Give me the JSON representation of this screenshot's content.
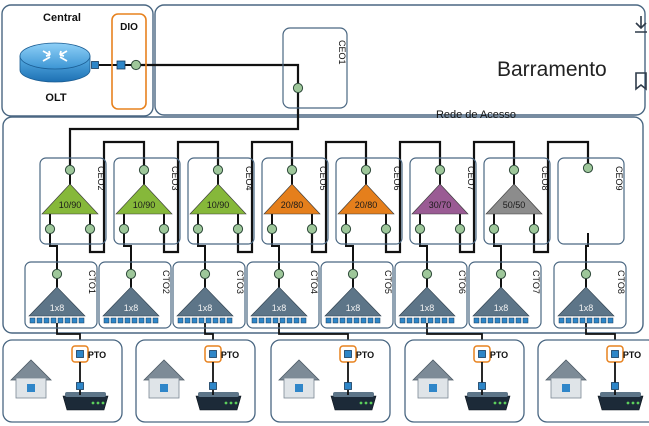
{
  "central": {
    "title": "Central",
    "olt_label": "OLT",
    "dio_label": "DIO"
  },
  "barramento": {
    "title": "Barramento",
    "ceo_label": "CEO1"
  },
  "rede": {
    "title": "Rede de Acesso"
  },
  "ceos": [
    {
      "label": "CEO2",
      "ratio": "10/90",
      "color": "#86b83a"
    },
    {
      "label": "CEO3",
      "ratio": "10/90",
      "color": "#86b83a"
    },
    {
      "label": "CEO4",
      "ratio": "10/90",
      "color": "#86b83a"
    },
    {
      "label": "CEO5",
      "ratio": "20/80",
      "color": "#e57f1c"
    },
    {
      "label": "CEO6",
      "ratio": "20/80",
      "color": "#e57f1c"
    },
    {
      "label": "CEO7",
      "ratio": "30/70",
      "color": "#9a5b94"
    },
    {
      "label": "CEO8",
      "ratio": "50/50",
      "color": "#8c8c8c"
    },
    {
      "label": "CEO9",
      "ratio": "",
      "color": ""
    }
  ],
  "ctos": [
    {
      "label": "CTO1",
      "ratio": "1x8"
    },
    {
      "label": "CTO2",
      "ratio": "1x8"
    },
    {
      "label": "CTO3",
      "ratio": "1x8"
    },
    {
      "label": "CTO4",
      "ratio": "1x8"
    },
    {
      "label": "CTO5",
      "ratio": "1x8"
    },
    {
      "label": "CTO6",
      "ratio": "1x8"
    },
    {
      "label": "CTO7",
      "ratio": "1x8"
    },
    {
      "label": "CTO8",
      "ratio": "1x8"
    }
  ],
  "homes": [
    {
      "pto_label": "PTO"
    },
    {
      "pto_label": "PTO"
    },
    {
      "pto_label": "PTO"
    },
    {
      "pto_label": "PTO"
    },
    {
      "pto_label": "PTO"
    }
  ],
  "toolbar": {
    "download_icon": "download-icon",
    "bookmark_icon": "bookmark-icon"
  },
  "colors": {
    "border": "#4a6782",
    "connector": "#2e86c8",
    "node": "#9ec79a",
    "cto": "#5d7588",
    "dio": "#e7821f"
  }
}
